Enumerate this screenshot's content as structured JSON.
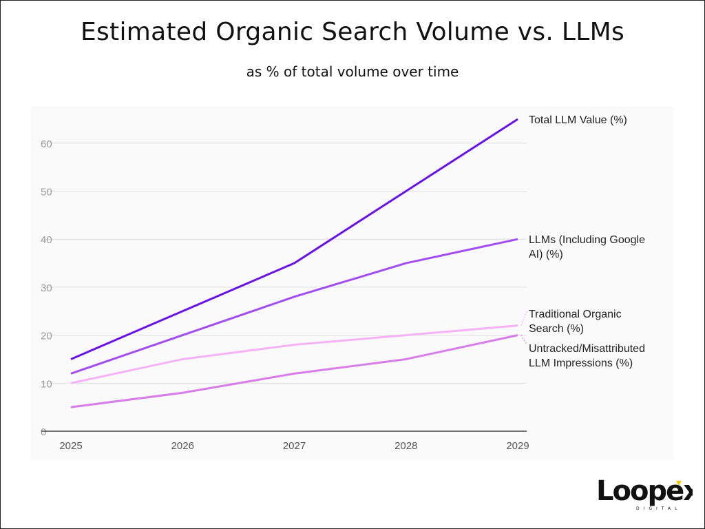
{
  "chart_data": {
    "type": "line",
    "title": "Estimated Organic Search Volume vs. LLMs",
    "subtitle": "as % of total volume over time",
    "xlabel": "",
    "ylabel": "",
    "categories": [
      "2025",
      "2026",
      "2027",
      "2028",
      "2029"
    ],
    "ylim": [
      0,
      65
    ],
    "yticks": [
      0,
      10,
      20,
      30,
      40,
      50,
      60
    ],
    "grid": true,
    "legend": "right, end-of-line labels",
    "series": [
      {
        "name": "Total LLM Value (%)",
        "label_lines": [
          "Total LLM Value (%)"
        ],
        "color": "#6a12e6",
        "values": [
          15,
          25,
          35,
          50,
          65
        ]
      },
      {
        "name": "LLMs (Including Google AI) (%)",
        "label_lines": [
          "LLMs (Including Google",
          "AI) (%)"
        ],
        "color": "#a24cf2",
        "values": [
          12,
          20,
          28,
          35,
          40
        ]
      },
      {
        "name": "Traditional Organic Search (%)",
        "label_lines": [
          "Traditional Organic",
          "Search (%)"
        ],
        "color": "#f6b2f6",
        "values": [
          10,
          15,
          18,
          20,
          22
        ]
      },
      {
        "name": "Untracked/Misattributed LLM Impressions (%)",
        "label_lines": [
          "Untracked/Misattributed",
          "LLM Impressions (%)"
        ],
        "color": "#d77de9",
        "values": [
          5,
          8,
          12,
          15,
          20
        ]
      }
    ]
  },
  "logo": {
    "text": "Loopex",
    "subtext": "DIGITAL",
    "accent": "#f2c200"
  }
}
